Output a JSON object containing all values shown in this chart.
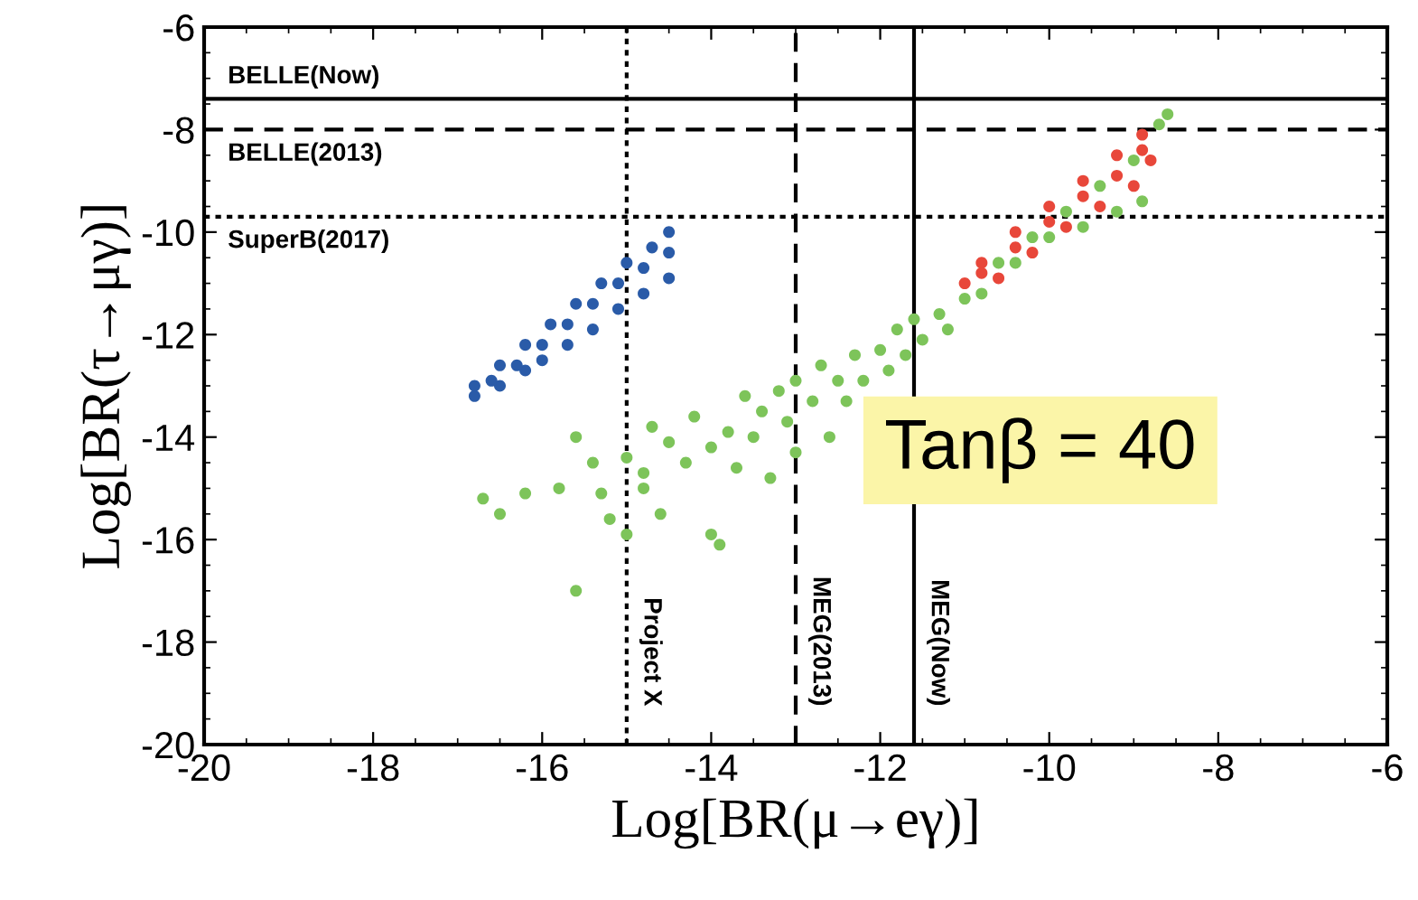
{
  "chart_data": {
    "type": "scatter",
    "xlabel": "Log[BR(μ→eγ)]",
    "ylabel": "Log[BR(τ→μγ)]",
    "xlim": [
      -20,
      -6
    ],
    "ylim": [
      -20,
      -6
    ],
    "xticks": [
      -20,
      -18,
      -16,
      -14,
      -12,
      -10,
      -8,
      -6
    ],
    "yticks": [
      -20,
      -18,
      -16,
      -14,
      -12,
      -10,
      -8,
      -6
    ],
    "grid": false,
    "legend": false,
    "marker": "circle",
    "series": [
      {
        "color": "#7dc45a",
        "x": [
          -16.7,
          -16.5,
          -16.2,
          -15.8,
          -15.6,
          -15.6,
          -15.4,
          -15.3,
          -15.2,
          -15.0,
          -15.0,
          -14.8,
          -14.8,
          -14.7,
          -14.6,
          -14.5,
          -14.3,
          -14.2,
          -14.0,
          -14.0,
          -13.9,
          -13.8,
          -13.7,
          -13.6,
          -13.5,
          -13.4,
          -13.3,
          -13.2,
          -13.1,
          -13.0,
          -13.0,
          -12.8,
          -12.7,
          -12.6,
          -12.5,
          -12.4,
          -12.3,
          -12.2,
          -12.0,
          -11.9,
          -11.8,
          -11.7,
          -11.6,
          -11.5,
          -11.3,
          -11.2,
          -11.0,
          -10.8,
          -10.6,
          -10.4,
          -10.2,
          -10.0,
          -9.8,
          -9.6,
          -9.4,
          -9.2,
          -9.0,
          -8.9,
          -8.7,
          -8.6
        ],
        "values": [
          -15.2,
          -15.5,
          -15.1,
          -15.0,
          -17.0,
          -14.0,
          -14.5,
          -15.1,
          -15.6,
          -14.4,
          -15.9,
          -14.7,
          -15.0,
          -13.8,
          -15.5,
          -14.1,
          -14.5,
          -13.6,
          -14.2,
          -15.9,
          -16.1,
          -13.9,
          -14.6,
          -13.2,
          -14.0,
          -13.5,
          -14.8,
          -13.1,
          -13.7,
          -12.9,
          -14.3,
          -13.3,
          -12.6,
          -14.0,
          -12.9,
          -13.3,
          -12.4,
          -12.9,
          -12.3,
          -12.7,
          -11.9,
          -12.4,
          -11.7,
          -12.1,
          -11.6,
          -11.9,
          -11.3,
          -11.2,
          -10.6,
          -10.6,
          -10.1,
          -10.1,
          -9.6,
          -9.9,
          -9.1,
          -9.6,
          -8.6,
          -9.4,
          -7.9,
          -7.7
        ]
      },
      {
        "color": "#2a5ba8",
        "x": [
          -16.8,
          -16.5,
          -16.2,
          -16.0,
          -15.7,
          -15.4,
          -15.1,
          -14.8,
          -14.5,
          -16.8,
          -16.5,
          -16.2,
          -15.9,
          -15.6,
          -15.3,
          -15.0,
          -14.7,
          -14.5,
          -16.6,
          -16.3,
          -16.0,
          -15.7,
          -15.4,
          -15.1,
          -14.8,
          -14.5
        ],
        "values": [
          -13.2,
          -13.0,
          -12.7,
          -12.5,
          -12.2,
          -11.9,
          -11.5,
          -11.2,
          -10.9,
          -13.0,
          -12.6,
          -12.2,
          -11.8,
          -11.4,
          -11.0,
          -10.6,
          -10.3,
          -10.0,
          -12.9,
          -12.6,
          -12.2,
          -11.8,
          -11.4,
          -11.0,
          -10.7,
          -10.4
        ]
      },
      {
        "color": "#e8473a",
        "x": [
          -11.0,
          -10.8,
          -10.4,
          -10.0,
          -9.6,
          -9.2,
          -8.9,
          -10.6,
          -10.2,
          -9.8,
          -9.4,
          -9.0,
          -8.8,
          -10.8,
          -10.4,
          -10.0,
          -9.6,
          -9.2,
          -8.9
        ],
        "values": [
          -11.0,
          -10.6,
          -10.0,
          -9.5,
          -9.0,
          -8.5,
          -8.1,
          -10.9,
          -10.4,
          -9.9,
          -9.5,
          -9.1,
          -8.6,
          -10.8,
          -10.3,
          -9.8,
          -9.3,
          -8.9,
          -8.4
        ]
      }
    ],
    "ref_lines": [
      {
        "axis": "y",
        "value": -7.4,
        "label": "BELLE(Now)",
        "line_style": "solid"
      },
      {
        "axis": "y",
        "value": -8,
        "label": "BELLE(2013)",
        "line_style": "dashed"
      },
      {
        "axis": "y",
        "value": -9.7,
        "label": "SuperB(2017)",
        "line_style": "dotted"
      },
      {
        "axis": "x",
        "value": -15,
        "label": "Project X",
        "line_style": "dotted"
      },
      {
        "axis": "x",
        "value": -13,
        "label": "MEG(2013)",
        "line_style": "dashed"
      },
      {
        "axis": "x",
        "value": -11.6,
        "label": "MEG(Now)",
        "line_style": "solid"
      }
    ],
    "annotations": [
      "Tanβ = 40"
    ]
  }
}
